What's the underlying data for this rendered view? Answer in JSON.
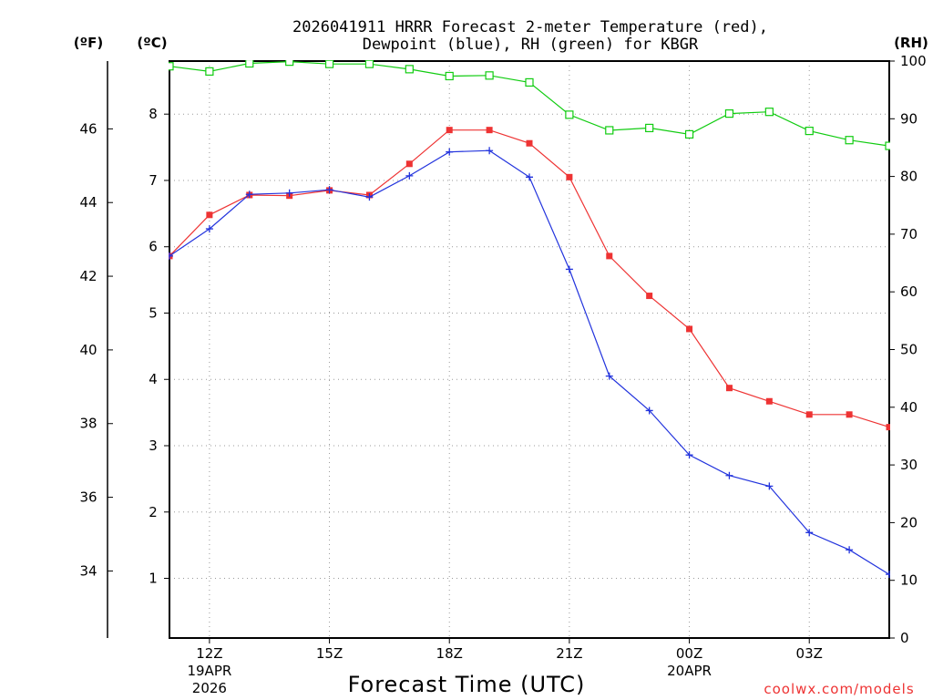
{
  "chart_data": {
    "type": "line",
    "title_line1": "2026041911 HRRR Forecast 2-meter Temperature (red),",
    "title_line2": "Dewpoint (blue), RH (green) for KBGR",
    "xlabel": "Forecast Time (UTC)",
    "unit_f": "(ºF)",
    "unit_c": "(ºC)",
    "unit_rh": "(RH)",
    "credit": "coolwx.com/models",
    "colors": {
      "temperature": "#ee3333",
      "dewpoint": "#2233dd",
      "rh": "#11cc11"
    },
    "x_hours": [
      11,
      12,
      13,
      14,
      15,
      16,
      17,
      18,
      19,
      20,
      21,
      22,
      23,
      24,
      25,
      26,
      27,
      28,
      29
    ],
    "x_ticks": [
      {
        "hour": 12,
        "label": "12Z",
        "sub1": "19APR",
        "sub2": "2026"
      },
      {
        "hour": 15,
        "label": "15Z",
        "sub1": "",
        "sub2": ""
      },
      {
        "hour": 18,
        "label": "18Z",
        "sub1": "",
        "sub2": ""
      },
      {
        "hour": 21,
        "label": "21Z",
        "sub1": "",
        "sub2": ""
      },
      {
        "hour": 24,
        "label": "00Z",
        "sub1": "20APR",
        "sub2": ""
      },
      {
        "hour": 27,
        "label": "03Z",
        "sub1": "",
        "sub2": ""
      }
    ],
    "celsius_ticks": [
      "1",
      "2",
      "3",
      "4",
      "5",
      "6",
      "7",
      "8"
    ],
    "fahrenheit_ticks": [
      "34",
      "36",
      "38",
      "40",
      "42",
      "44",
      "46"
    ],
    "rh_ticks": [
      "0",
      "10",
      "20",
      "30",
      "40",
      "50",
      "60",
      "70",
      "80",
      "90",
      "100"
    ],
    "c_range": [
      0.1,
      8.8
    ],
    "rh_range": [
      0,
      100
    ],
    "series": [
      {
        "name": "Temperature",
        "unit": "C",
        "values": [
          5.86,
          6.48,
          6.78,
          6.77,
          6.85,
          6.78,
          7.25,
          7.76,
          7.76,
          7.56,
          7.05,
          5.86,
          5.26,
          4.76,
          3.87,
          3.67,
          3.47,
          3.47,
          3.28
        ]
      },
      {
        "name": "Dewpoint",
        "unit": "C",
        "values": [
          5.86,
          6.27,
          6.79,
          6.81,
          6.86,
          6.75,
          7.07,
          7.43,
          7.45,
          7.05,
          5.66,
          4.05,
          3.53,
          2.86,
          2.55,
          2.39,
          1.69,
          1.43,
          1.06
        ]
      },
      {
        "name": "RH",
        "unit": "%",
        "values": [
          99.1,
          98.2,
          99.6,
          99.9,
          99.5,
          99.5,
          98.6,
          97.4,
          97.5,
          96.3,
          90.7,
          88.0,
          88.4,
          87.3,
          90.9,
          91.2,
          87.9,
          86.3,
          85.3
        ]
      }
    ]
  }
}
